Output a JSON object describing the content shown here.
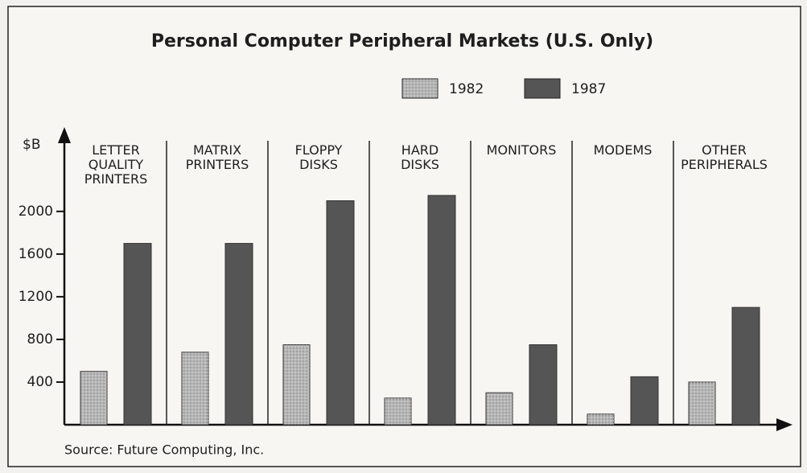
{
  "chart_data": {
    "type": "bar",
    "title": "Personal Computer Peripheral Markets  (U.S. Only)",
    "y_label": "$B",
    "source": "Source: Future Computing, Inc.",
    "categories": [
      "LETTER QUALITY PRINTERS",
      "MATRIX PRINTERS",
      "FLOPPY DISKS",
      "HARD DISKS",
      "MONITORS",
      "MODEMS",
      "OTHER PERIPHERALS"
    ],
    "series": [
      {
        "name": "1982",
        "color": "#b5b5b5",
        "values": [
          500,
          680,
          750,
          250,
          300,
          100,
          400
        ]
      },
      {
        "name": "1987",
        "color": "#555555",
        "values": [
          1700,
          1700,
          2100,
          2150,
          750,
          450,
          1100
        ]
      }
    ],
    "ylim": [
      0,
      2700
    ],
    "yticks": [
      400,
      800,
      1200,
      1600,
      2000
    ]
  }
}
